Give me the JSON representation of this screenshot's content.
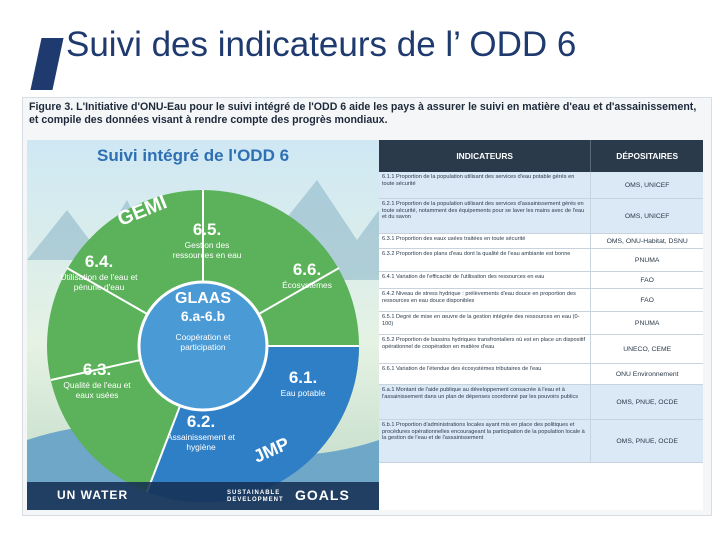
{
  "slide": {
    "title": "Suivi des indicateurs de l’ ODD 6",
    "accent_color": "#1f3a6e"
  },
  "figure": {
    "caption": "Figure 3. L'Initiative d'ONU-Eau pour le suivi intégré de l'ODD 6 aide les pays à assurer le suivi en matière d'eau et d'assainissement, et compile des données visant à rendre compte des progrès mondiaux.",
    "panel_title": "Suivi intégré de l'ODD 6",
    "wheel": {
      "gemi": "GEMI",
      "jmp": "JMP",
      "glaas": "GLAAS",
      "glaas_range": "6.a-6.b",
      "center_label": "Coopération et participation",
      "segments": [
        {
          "num": "6.5.",
          "label": "Gestion des ressources en eau"
        },
        {
          "num": "6.6.",
          "label": "Écosystèmes"
        },
        {
          "num": "6.1.",
          "label": "Eau potable"
        },
        {
          "num": "6.2.",
          "label": "Assainissement et hygiène"
        },
        {
          "num": "6.3.",
          "label": "Qualité de l'eau et eaux usées"
        },
        {
          "num": "6.4.",
          "label": "Utilisation de l'eau et pénurie d'eau"
        }
      ]
    },
    "table": {
      "head_indicators": "INDICATEURS",
      "head_custodians": "DÉPOSITAIRES",
      "rows": [
        {
          "ind": "6.1.1 Proportion de la population utilisant des services d'eau potable gérés en toute sécurité",
          "dep": "OMS, UNICEF"
        },
        {
          "ind": "6.2.1 Proportion de la population utilisant des services d'assainissement gérés en toute sécurité, notamment des équipements pour se laver les mains avec de l'eau et du savon",
          "dep": "OMS, UNICEF"
        },
        {
          "ind": "6.3.1 Proportion des eaux usées traitées en toute sécurité",
          "dep": "OMS, ONU-Habitat, DSNU"
        },
        {
          "ind": "6.3.2 Proportion des plans d'eau dont la qualité de l'eau ambiante est bonne",
          "dep": "PNUMA"
        },
        {
          "ind": "6.4.1 Variation de l'efficacité de l'utilisation des ressources en eau",
          "dep": "FAO"
        },
        {
          "ind": "6.4.2 Niveau de stress hydrique : prélèvements d'eau douce en proportion des ressources en eau douce disponibles",
          "dep": "FAO"
        },
        {
          "ind": "6.5.1 Degré de mise en œuvre de la gestion intégrée des ressources en eau (0-100)",
          "dep": "PNUMA"
        },
        {
          "ind": "6.5.2 Proportion de bassins hydriques transfrontaliers où est en place un dispositif opérationnel de coopération en matière d'eau",
          "dep": "UNECO, CEME"
        },
        {
          "ind": "6.6.1 Variation de l'étendue des écosystèmes tributaires de l'eau",
          "dep": "ONU Environnement"
        },
        {
          "ind": "6.a.1 Montant de l'aide publique au développement consacrée à l'eau et à l'assainissement dans un plan de dépenses coordonné par les pouvoirs publics",
          "dep": "OMS, PNUE, OCDE"
        },
        {
          "ind": "6.b.1 Proportion d'administrations locales ayant mis en place des politiques et procédures opérationnelles encourageant la participation de la population locale à la gestion de l'eau et de l'assainissement",
          "dep": "OMS, PNUE, OCDE"
        }
      ]
    },
    "footer": {
      "un_water": "UN WATER",
      "sdg": "SUSTAINABLE DEVELOPMENT",
      "goals": "GOALS"
    },
    "colors": {
      "ring_green": "#5bb25a",
      "ring_blue": "#2f7fc6",
      "center_blue": "#4a9ad6",
      "table_head": "#2b3a4a",
      "blue_row": "#dbe8f6"
    }
  }
}
